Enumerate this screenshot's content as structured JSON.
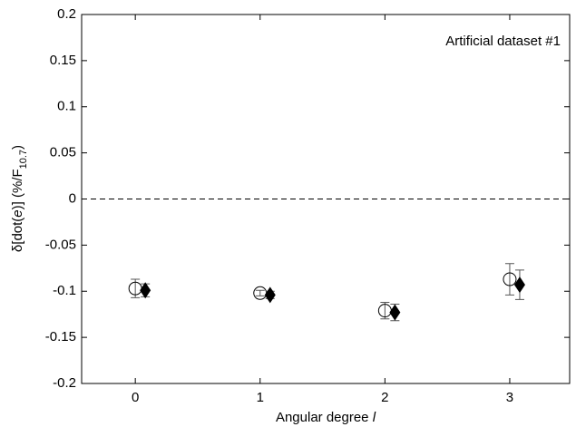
{
  "chart_data": {
    "type": "errorbar",
    "annotation": "Artificial dataset #1",
    "xlabel": [
      "Angular degree ",
      "l"
    ],
    "ylabel": [
      "δ[dot(",
      "e",
      ")] (%/F",
      "10.7",
      ")"
    ],
    "xlim": [
      -0.43,
      3.48
    ],
    "xticks": [
      0,
      1,
      2,
      3
    ],
    "ylim": [
      -0.2,
      0.2
    ],
    "yticks": [
      0.2,
      0.15,
      0.1,
      0.05,
      0,
      -0.05,
      -0.1,
      -0.15,
      -0.2
    ],
    "reference_line": 0,
    "series": [
      {
        "marker": "circle-open",
        "color": "#000000",
        "x": [
          0,
          1,
          2,
          3
        ],
        "values": [
          -0.097,
          -0.102,
          -0.121,
          -0.087
        ],
        "errors": [
          0.01,
          0.003,
          0.009,
          0.017
        ]
      },
      {
        "marker": "diamond-filled",
        "color": "#000000",
        "x": [
          0.08,
          1.08,
          2.08,
          3.08
        ],
        "values": [
          -0.099,
          -0.104,
          -0.123,
          -0.093
        ],
        "errors": [
          0.007,
          0.004,
          0.009,
          0.016
        ]
      }
    ]
  }
}
